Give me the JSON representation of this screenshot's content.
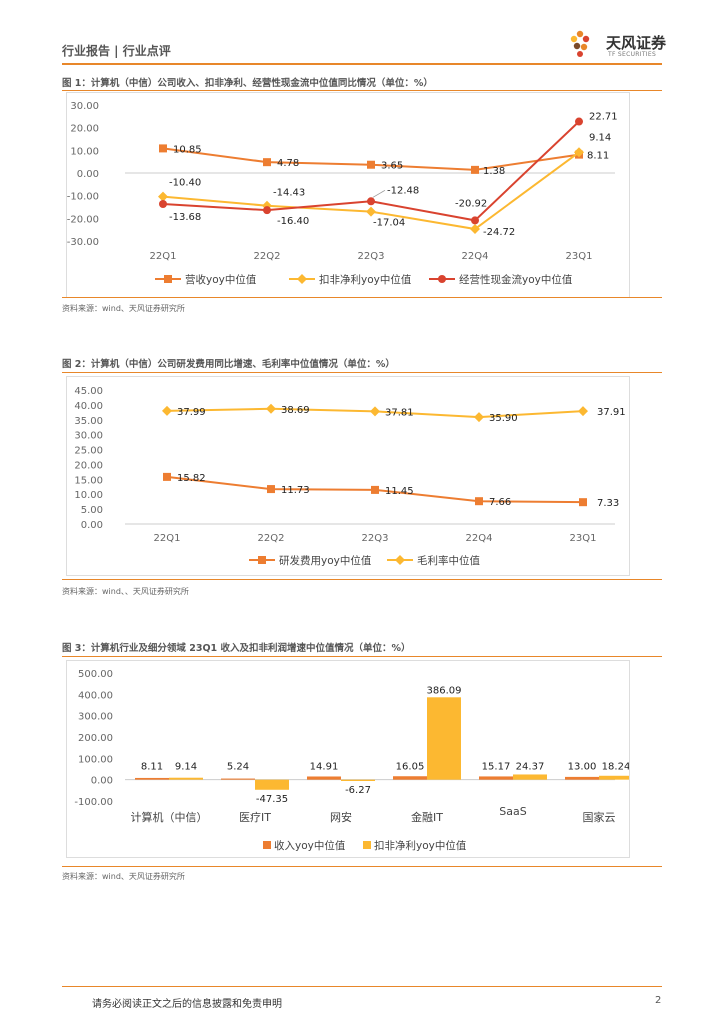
{
  "header": {
    "section": "行业报告 | 行业点评",
    "logo_name": "天风证券",
    "logo_sub": "TF SECURITIES"
  },
  "colors": {
    "accent": "#e8872a",
    "orange": "#ed7d31",
    "yellow": "#fcb831",
    "red": "#d9432f"
  },
  "figures": [
    {
      "title": "图 1：计算机（中信）公司收入、扣非净利、经营性现金流中位值同比情况（单位：%）",
      "source": "资料来源：wind、天风证券研究所"
    },
    {
      "title": "图 2：计算机（中信）公司研发费用同比增速、毛利率中位值情况（单位：%）",
      "source": "资料来源：wind、、天风证券研究所"
    },
    {
      "title": "图 3：计算机行业及细分领域 23Q1 收入及扣非利润增速中位值情况（单位：%）",
      "source": "资料来源：wind、天风证券研究所"
    }
  ],
  "chart_data": [
    {
      "type": "line",
      "categories": [
        "22Q1",
        "22Q2",
        "22Q3",
        "22Q4",
        "23Q1"
      ],
      "yticks": [
        "30.00",
        "20.00",
        "10.00",
        "0.00",
        "-10.00",
        "-20.00",
        "-30.00"
      ],
      "ylim": [
        -30,
        30
      ],
      "series": [
        {
          "name": "营收yoy中位值",
          "marker": "square",
          "color": "#ed7d31",
          "values": [
            10.85,
            4.78,
            3.65,
            1.38,
            8.11
          ],
          "labels": [
            "10.85",
            "4.78",
            "3.65",
            "1.38",
            "8.11"
          ]
        },
        {
          "name": "扣非净利yoy中位值",
          "marker": "diamond",
          "color": "#fcb831",
          "values": [
            -10.4,
            -14.43,
            -17.04,
            -24.72,
            9.14
          ],
          "labels": [
            "-10.40",
            "-14.43",
            "-17.04",
            "-24.72",
            "9.14"
          ]
        },
        {
          "name": "经营性现金流yoy中位值",
          "marker": "circle",
          "color": "#d9432f",
          "values": [
            -13.68,
            -16.4,
            -12.48,
            -20.92,
            22.71
          ],
          "labels": [
            "-13.68",
            "-16.40",
            "-12.48",
            "-20.92",
            "22.71"
          ]
        }
      ]
    },
    {
      "type": "line",
      "categories": [
        "22Q1",
        "22Q2",
        "22Q3",
        "22Q4",
        "23Q1"
      ],
      "yticks": [
        "45.00",
        "40.00",
        "35.00",
        "30.00",
        "25.00",
        "20.00",
        "15.00",
        "10.00",
        "5.00",
        "0.00"
      ],
      "ylim": [
        0,
        45
      ],
      "series": [
        {
          "name": "研发费用yoy中位值",
          "marker": "square",
          "color": "#ed7d31",
          "values": [
            15.82,
            11.73,
            11.45,
            7.66,
            7.33
          ],
          "labels": [
            "15.82",
            "11.73",
            "11.45",
            "7.66",
            "7.33"
          ]
        },
        {
          "name": "毛利率中位值",
          "marker": "diamond",
          "color": "#fcb831",
          "values": [
            37.99,
            38.69,
            37.81,
            35.9,
            37.91
          ],
          "labels": [
            "37.99",
            "38.69",
            "37.81",
            "35.90",
            "37.91"
          ]
        }
      ]
    },
    {
      "type": "bar",
      "categories": [
        "计算机（中信）",
        "医疗IT",
        "网安",
        "金融IT",
        "SaaS",
        "国家云"
      ],
      "yticks": [
        "500.00",
        "400.00",
        "300.00",
        "200.00",
        "100.00",
        "0.00",
        "-100.00"
      ],
      "ylim": [
        -100,
        500
      ],
      "series": [
        {
          "name": "收入yoy中位值",
          "color": "#ed7d31",
          "values": [
            8.11,
            5.24,
            14.91,
            16.05,
            15.17,
            13.0
          ],
          "labels": [
            "8.11",
            "5.24",
            "14.91",
            "16.05",
            "15.17",
            "13.00"
          ]
        },
        {
          "name": "扣非净利yoy中位值",
          "color": "#fcb831",
          "values": [
            9.14,
            -47.35,
            -6.27,
            386.09,
            24.37,
            18.24
          ],
          "labels": [
            "9.14",
            "-47.35",
            "-6.27",
            "386.09",
            "24.37",
            "18.24"
          ]
        }
      ]
    }
  ],
  "footer": {
    "disclaimer": "请务必阅读正文之后的信息披露和免责申明",
    "page": "2"
  }
}
